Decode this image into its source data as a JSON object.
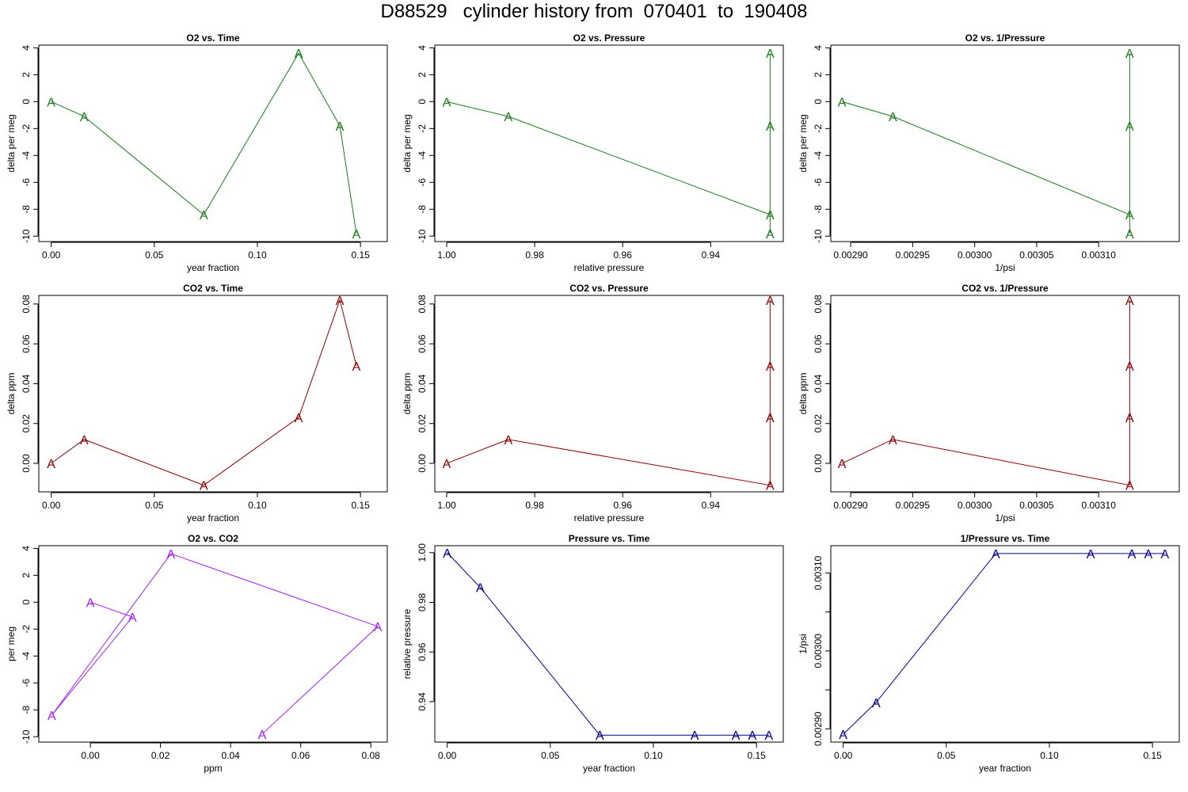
{
  "figure": {
    "title": "D88529   cylinder history from  070401  to  190408"
  },
  "chart_data": [
    {
      "type": "line",
      "title": "O2 vs. Time",
      "xlabel": "year fraction",
      "ylabel": "delta per meg",
      "color": "#1a7a1a",
      "marker": "A",
      "xlim": [
        -0.006,
        0.163
      ],
      "ylim": [
        -10.4,
        4.2
      ],
      "x_reversed": false,
      "xticks": [
        0,
        0.05,
        0.1,
        0.15
      ],
      "xticklabels": [
        "0.00",
        "0.05",
        "0.10",
        "0.15"
      ],
      "yticks": [
        4,
        2,
        0,
        -2,
        -4,
        -6,
        -8,
        -10
      ],
      "yticklabels": [
        "4",
        "2",
        "0",
        "-2",
        "-4",
        "-6",
        "-8",
        "-10"
      ],
      "x": [
        0.0,
        0.016,
        0.074,
        0.12,
        0.14,
        0.148
      ],
      "y": [
        0.0,
        -1.1,
        -8.4,
        3.6,
        -1.8,
        -9.8
      ]
    },
    {
      "type": "line",
      "title": "O2 vs. Pressure",
      "xlabel": "relative pressure",
      "ylabel": "delta per meg",
      "color": "#1a7a1a",
      "marker": "A",
      "xlim": [
        1.0027,
        0.9235
      ],
      "ylim": [
        -10.4,
        4.2
      ],
      "x_reversed": true,
      "xticks": [
        1.0,
        0.98,
        0.96,
        0.94
      ],
      "xticklabels": [
        "1.00",
        "0.98",
        "0.96",
        "0.94"
      ],
      "yticks": [
        4,
        2,
        0,
        -2,
        -4,
        -6,
        -8,
        -10
      ],
      "yticklabels": [
        "4",
        "2",
        "0",
        "-2",
        "-4",
        "-6",
        "-8",
        "-10"
      ],
      "x": [
        1.0,
        0.986,
        0.9265,
        0.9265,
        0.9265,
        0.9265
      ],
      "y": [
        0.0,
        -1.1,
        -8.4,
        3.6,
        -1.8,
        -9.8
      ]
    },
    {
      "type": "line",
      "title": "O2 vs. 1/Pressure",
      "xlabel": "1/psi",
      "ylabel": "delta per meg",
      "color": "#1a7a1a",
      "marker": "A",
      "xlim": [
        0.002884,
        0.003165
      ],
      "ylim": [
        -10.4,
        4.2
      ],
      "x_reversed": false,
      "xticks": [
        0.0029,
        0.00295,
        0.003,
        0.00305,
        0.0031
      ],
      "xticklabels": [
        "0.00290",
        "0.00295",
        "0.00300",
        "0.00305",
        "0.00310"
      ],
      "yticks": [
        4,
        2,
        0,
        -2,
        -4,
        -6,
        -8,
        -10
      ],
      "yticklabels": [
        "4",
        "2",
        "0",
        "-2",
        "-4",
        "-6",
        "-8",
        "-10"
      ],
      "x": [
        0.002893,
        0.002934,
        0.003125,
        0.003125,
        0.003125,
        0.003125
      ],
      "y": [
        0.0,
        -1.1,
        -8.4,
        3.6,
        -1.8,
        -9.8
      ]
    },
    {
      "type": "line",
      "title": "CO2 vs. Time",
      "xlabel": "year fraction",
      "ylabel": "delta ppm",
      "color": "#8b0000",
      "marker": "A",
      "xlim": [
        -0.006,
        0.163
      ],
      "ylim": [
        -0.0143,
        0.0843
      ],
      "x_reversed": false,
      "xticks": [
        0,
        0.05,
        0.1,
        0.15
      ],
      "xticklabels": [
        "0.00",
        "0.05",
        "0.10",
        "0.15"
      ],
      "yticks": [
        0.0,
        0.02,
        0.04,
        0.06,
        0.08
      ],
      "yticklabels": [
        "0.00",
        "0.02",
        "0.04",
        "0.06",
        "0.08"
      ],
      "x": [
        0.0,
        0.016,
        0.074,
        0.12,
        0.14,
        0.148
      ],
      "y": [
        0.0,
        0.012,
        -0.011,
        0.023,
        0.082,
        0.049
      ]
    },
    {
      "type": "line",
      "title": "CO2 vs. Pressure",
      "xlabel": "relative pressure",
      "ylabel": "delta ppm",
      "color": "#8b0000",
      "marker": "A",
      "xlim": [
        1.0027,
        0.9235
      ],
      "ylim": [
        -0.0143,
        0.0843
      ],
      "x_reversed": true,
      "xticks": [
        1.0,
        0.98,
        0.96,
        0.94
      ],
      "xticklabels": [
        "1.00",
        "0.98",
        "0.96",
        "0.94"
      ],
      "yticks": [
        0.0,
        0.02,
        0.04,
        0.06,
        0.08
      ],
      "yticklabels": [
        "0.00",
        "0.02",
        "0.04",
        "0.06",
        "0.08"
      ],
      "x": [
        1.0,
        0.986,
        0.9265,
        0.9265,
        0.9265,
        0.9265
      ],
      "y": [
        0.0,
        0.012,
        -0.011,
        0.023,
        0.082,
        0.049
      ]
    },
    {
      "type": "line",
      "title": "CO2 vs. 1/Pressure",
      "xlabel": "1/psi",
      "ylabel": "delta ppm",
      "color": "#8b0000",
      "marker": "A",
      "xlim": [
        0.002884,
        0.003165
      ],
      "ylim": [
        -0.0143,
        0.0843
      ],
      "x_reversed": false,
      "xticks": [
        0.0029,
        0.00295,
        0.003,
        0.00305,
        0.0031
      ],
      "xticklabels": [
        "0.00290",
        "0.00295",
        "0.00300",
        "0.00305",
        "0.00310"
      ],
      "yticks": [
        0.0,
        0.02,
        0.04,
        0.06,
        0.08
      ],
      "yticklabels": [
        "0.00",
        "0.02",
        "0.04",
        "0.06",
        "0.08"
      ],
      "x": [
        0.002893,
        0.002934,
        0.003125,
        0.003125,
        0.003125,
        0.003125
      ],
      "y": [
        0.0,
        0.012,
        -0.011,
        0.023,
        0.082,
        0.049
      ]
    },
    {
      "type": "line",
      "title": "O2 vs. CO2",
      "xlabel": "ppm",
      "ylabel": "per meg",
      "color": "#a020f0",
      "marker": "A",
      "xlim": [
        -0.0147,
        0.0847
      ],
      "ylim": [
        -10.4,
        4.2
      ],
      "x_reversed": false,
      "xticks": [
        0.0,
        0.02,
        0.04,
        0.06,
        0.08
      ],
      "xticklabels": [
        "0.00",
        "0.02",
        "0.04",
        "0.06",
        "0.08"
      ],
      "yticks": [
        4,
        2,
        0,
        -2,
        -4,
        -6,
        -8,
        -10
      ],
      "yticklabels": [
        "4",
        "2",
        "0",
        "-2",
        "-4",
        "-6",
        "-8",
        "-10"
      ],
      "x": [
        0.0,
        0.012,
        -0.011,
        0.023,
        0.082,
        0.049
      ],
      "y": [
        0.0,
        -1.1,
        -8.4,
        3.6,
        -1.8,
        -9.8
      ]
    },
    {
      "type": "line",
      "title": "Pressure vs. Time",
      "xlabel": "year fraction",
      "ylabel": "relative pressure",
      "color": "#00008b",
      "marker": "A",
      "xlim": [
        -0.006,
        0.163
      ],
      "ylim": [
        0.9237,
        1.0028
      ],
      "x_reversed": false,
      "xticks": [
        0,
        0.05,
        0.1,
        0.15
      ],
      "xticklabels": [
        "0.00",
        "0.05",
        "0.10",
        "0.15"
      ],
      "yticks": [
        0.94,
        0.96,
        0.98,
        1.0
      ],
      "yticklabels": [
        "0.94",
        "0.96",
        "0.98",
        "1.00"
      ],
      "x": [
        0.0,
        0.016,
        0.074,
        0.12,
        0.14,
        0.148,
        0.156
      ],
      "y": [
        1.0,
        0.986,
        0.9265,
        0.9265,
        0.9265,
        0.9265,
        0.9265
      ]
    },
    {
      "type": "line",
      "title": "1/Pressure vs. Time",
      "xlabel": "year fraction",
      "ylabel": "1/psi",
      "color": "#00008b",
      "marker": "A",
      "xlim": [
        -0.006,
        0.163
      ],
      "ylim": [
        0.002883,
        0.003135
      ],
      "x_reversed": false,
      "xticks": [
        0,
        0.05,
        0.1,
        0.15
      ],
      "xticklabels": [
        "0.00",
        "0.05",
        "0.10",
        "0.15"
      ],
      "yticks": [
        0.0029,
        0.00295,
        0.003,
        0.00305,
        0.0031
      ],
      "yticklabels": [
        "0.00290",
        "",
        "0.00300",
        "",
        "0.00310"
      ],
      "x": [
        0.0,
        0.016,
        0.074,
        0.12,
        0.14,
        0.148,
        0.156
      ],
      "y": [
        0.002893,
        0.002934,
        0.003125,
        0.003125,
        0.003125,
        0.003125,
        0.003125
      ]
    }
  ]
}
